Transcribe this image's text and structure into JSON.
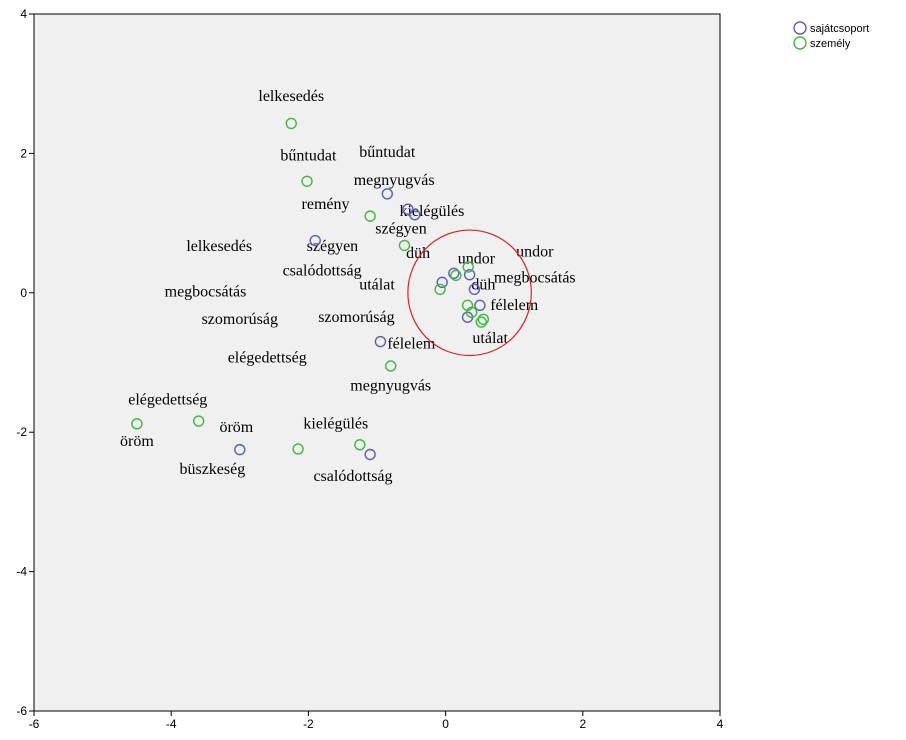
{
  "chart_data": {
    "type": "scatter",
    "title": "",
    "xlabel": "",
    "ylabel": "",
    "xlim": [
      -6,
      4
    ],
    "ylim": [
      -6,
      4
    ],
    "xticks": [
      -6,
      -4,
      -2,
      0,
      2,
      4
    ],
    "yticks": [
      -6,
      -4,
      -2,
      0,
      2,
      4
    ],
    "grid": false,
    "legend_position": "top-right outside",
    "series": [
      {
        "name": "sajátcsoport",
        "color": "#5b5bc8",
        "points": [
          {
            "x": -0.85,
            "y": 1.42,
            "label": "bűntudat"
          },
          {
            "x": -0.55,
            "y": 1.2,
            "label": "megnyugvás"
          },
          {
            "x": -0.45,
            "y": 1.12,
            "label": "kielégülés"
          },
          {
            "x": -1.9,
            "y": 0.75,
            "label": "lelkesedés"
          },
          {
            "x": 0.12,
            "y": 0.28,
            "label": "csalódottság"
          },
          {
            "x": 0.35,
            "y": 0.26,
            "label": "undor"
          },
          {
            "x": -0.05,
            "y": 0.15,
            "label": "utálat"
          },
          {
            "x": 0.42,
            "y": 0.05,
            "label": "düh"
          },
          {
            "x": 0.5,
            "y": -0.18,
            "label": "félelem"
          },
          {
            "x": 0.32,
            "y": -0.35,
            "label": "szomorúság"
          },
          {
            "x": -0.95,
            "y": -0.7,
            "label": "megbocsátás"
          },
          {
            "x": -3.0,
            "y": -2.25,
            "label": "büszkeség"
          },
          {
            "x": -1.1,
            "y": -2.32,
            "label": "elégedettség"
          }
        ]
      },
      {
        "name": "személy",
        "color": "#3fb83f",
        "points": [
          {
            "x": -2.25,
            "y": 2.43,
            "label": "lelkesedés"
          },
          {
            "x": -2.02,
            "y": 1.6,
            "label": "bűntudat"
          },
          {
            "x": -1.1,
            "y": 1.1,
            "label": "remény"
          },
          {
            "x": -0.6,
            "y": 0.68,
            "label": "szégyen"
          },
          {
            "x": 0.33,
            "y": 0.37,
            "label": "düh"
          },
          {
            "x": 0.15,
            "y": 0.25,
            "label": "undor"
          },
          {
            "x": -0.08,
            "y": 0.05,
            "label": "megbocsátás"
          },
          {
            "x": 0.32,
            "y": -0.18,
            "label": "utálat"
          },
          {
            "x": 0.38,
            "y": -0.28,
            "label": "szomorúság"
          },
          {
            "x": 0.52,
            "y": -0.42,
            "label": "félelem"
          },
          {
            "x": 0.55,
            "y": -0.38,
            "label": "utálat"
          },
          {
            "x": -0.8,
            "y": -1.05,
            "label": "elégedettség"
          },
          {
            "x": -4.5,
            "y": -1.88,
            "label": "öröm"
          },
          {
            "x": -3.6,
            "y": -1.84,
            "label": "elégedettség"
          },
          {
            "x": -2.15,
            "y": -2.24,
            "label": "öröm"
          },
          {
            "x": -1.25,
            "y": -2.18,
            "label": "kielégülés"
          }
        ]
      }
    ],
    "annotations": [
      {
        "text": "lelkesedés",
        "x": -2.25,
        "y": 2.75
      },
      {
        "text": "bűntudat",
        "x": -2.0,
        "y": 1.9
      },
      {
        "text": "bűntudat",
        "x": -0.85,
        "y": 1.95
      },
      {
        "text": "megnyugvás",
        "x": -0.75,
        "y": 1.55
      },
      {
        "text": "remény",
        "x": -1.75,
        "y": 1.2
      },
      {
        "text": "kielégülés",
        "x": -0.2,
        "y": 1.1
      },
      {
        "text": "szégyen",
        "x": -0.65,
        "y": 0.85
      },
      {
        "text": "lelkesedés",
        "x": -3.3,
        "y": 0.6
      },
      {
        "text": "szégyen",
        "x": -1.65,
        "y": 0.6
      },
      {
        "text": "düh",
        "x": -0.4,
        "y": 0.5
      },
      {
        "text": "undor",
        "x": 0.45,
        "y": 0.42
      },
      {
        "text": "undor",
        "x": 1.3,
        "y": 0.52
      },
      {
        "text": "csalódottság",
        "x": -1.8,
        "y": 0.25
      },
      {
        "text": "utálat",
        "x": -1.0,
        "y": 0.05
      },
      {
        "text": "düh",
        "x": 0.55,
        "y": 0.05
      },
      {
        "text": "megbocsátás",
        "x": 1.3,
        "y": 0.15
      },
      {
        "text": "megbocsátás",
        "x": -3.5,
        "y": -0.05
      },
      {
        "text": "félelem",
        "x": 1.0,
        "y": -0.25
      },
      {
        "text": "szomorúság",
        "x": -3.0,
        "y": -0.45
      },
      {
        "text": "szomorúság",
        "x": -1.3,
        "y": -0.42
      },
      {
        "text": "utálat",
        "x": 0.65,
        "y": -0.72
      },
      {
        "text": "félelem",
        "x": -0.5,
        "y": -0.8
      },
      {
        "text": "elégedettség",
        "x": -2.6,
        "y": -1.0
      },
      {
        "text": "megnyugvás",
        "x": -0.8,
        "y": -1.4
      },
      {
        "text": "elégedettség",
        "x": -4.05,
        "y": -1.6
      },
      {
        "text": "kielégülés",
        "x": -1.6,
        "y": -1.95
      },
      {
        "text": "öröm",
        "x": -4.5,
        "y": -2.2
      },
      {
        "text": "öröm",
        "x": -3.05,
        "y": -2.0
      },
      {
        "text": "büszkeség",
        "x": -3.4,
        "y": -2.6
      },
      {
        "text": "csalódottság",
        "x": -1.35,
        "y": -2.7
      }
    ],
    "highlight": {
      "shape": "circle",
      "color": "#dd2222",
      "cx": 0.35,
      "cy": 0.0,
      "r": 0.9
    }
  }
}
